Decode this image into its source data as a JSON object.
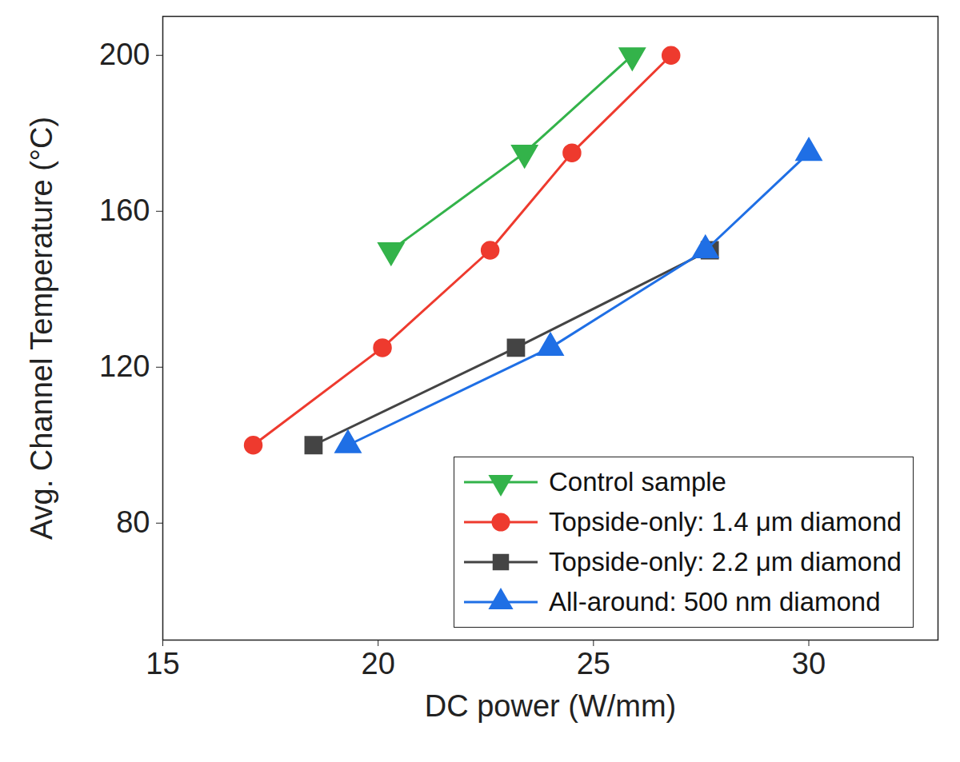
{
  "chart_data": {
    "type": "line",
    "xlabel": "DC power (W/mm)",
    "ylabel": "Avg. Channel Temperature (°C)",
    "xlim": [
      15,
      33
    ],
    "xticks": [
      15,
      20,
      25,
      30
    ],
    "ylim": [
      50,
      210
    ],
    "yticks": [
      80,
      120,
      160,
      200
    ],
    "grid": false,
    "legend": "lower right",
    "series": [
      {
        "name": "Control sample",
        "color": "#33b34a",
        "marker": "triangle-down",
        "x": [
          20.3,
          23.4,
          25.9
        ],
        "values": [
          150,
          175,
          200
        ]
      },
      {
        "name": "Topside-only: 1.4 μm diamond",
        "color": "#ee3a2e",
        "marker": "circle",
        "x": [
          17.1,
          20.1,
          22.6,
          24.5,
          26.8
        ],
        "values": [
          100,
          125,
          150,
          175,
          200
        ]
      },
      {
        "name": "Topside-only: 2.2 μm diamond",
        "color": "#444444",
        "marker": "square",
        "x": [
          18.5,
          23.2,
          27.7
        ],
        "values": [
          100,
          125,
          150
        ]
      },
      {
        "name": "All-around: 500 nm diamond",
        "color": "#1f6fe5",
        "marker": "triangle-up",
        "x": [
          19.3,
          24.0,
          27.6,
          30.0
        ],
        "values": [
          100,
          125,
          150,
          175
        ]
      }
    ]
  }
}
